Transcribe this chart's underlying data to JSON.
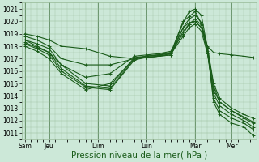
{
  "background_color": "#cce8d8",
  "grid_color": "#99bb99",
  "line_color": "#1a5c1a",
  "marker": "+",
  "markersize": 3,
  "linewidth": 0.8,
  "ylim": [
    1010.5,
    1021.5
  ],
  "yticks": [
    1011,
    1012,
    1013,
    1014,
    1015,
    1016,
    1017,
    1018,
    1019,
    1020,
    1021
  ],
  "xlabel": "Pression niveau de la mer( hPa )",
  "xlabel_fontsize": 7.5,
  "xtick_labels": [
    "Sam",
    "Jeu",
    "Dim",
    "Lun",
    "Mar",
    "Mer"
  ],
  "xtick_positions": [
    0,
    16,
    48,
    80,
    112,
    136
  ],
  "xlim": [
    -2,
    152
  ],
  "series": [
    {
      "x": [
        0,
        8,
        16,
        24,
        40,
        56,
        72,
        80,
        88,
        96,
        104,
        108,
        112,
        116,
        120,
        124,
        128,
        136,
        144,
        150
      ],
      "y": [
        1018.5,
        1018.2,
        1017.8,
        1016.5,
        1015.0,
        1014.8,
        1017.1,
        1017.2,
        1017.3,
        1017.4,
        1019.9,
        1020.8,
        1021.0,
        1020.5,
        1017.8,
        1013.5,
        1012.5,
        1011.8,
        1011.5,
        1010.8
      ]
    },
    {
      "x": [
        0,
        8,
        16,
        24,
        40,
        56,
        72,
        80,
        88,
        96,
        104,
        108,
        112,
        116,
        120,
        124,
        128,
        136,
        144,
        150
      ],
      "y": [
        1018.3,
        1017.9,
        1017.5,
        1016.2,
        1014.8,
        1014.6,
        1017.0,
        1017.1,
        1017.2,
        1017.3,
        1019.5,
        1020.2,
        1020.5,
        1019.9,
        1017.5,
        1013.8,
        1012.8,
        1012.2,
        1011.8,
        1011.3
      ]
    },
    {
      "x": [
        0,
        8,
        16,
        24,
        40,
        56,
        72,
        80,
        88,
        96,
        104,
        108,
        112,
        116,
        120,
        124,
        128,
        136,
        144,
        150
      ],
      "y": [
        1018.2,
        1017.8,
        1017.3,
        1016.0,
        1014.7,
        1014.5,
        1016.9,
        1017.1,
        1017.2,
        1017.3,
        1019.2,
        1019.8,
        1020.0,
        1019.5,
        1017.6,
        1014.2,
        1013.2,
        1012.5,
        1012.0,
        1011.5
      ]
    },
    {
      "x": [
        0,
        8,
        16,
        24,
        40,
        56,
        72,
        80,
        88,
        96,
        104,
        108,
        112,
        116,
        120,
        124,
        128,
        136,
        144,
        150
      ],
      "y": [
        1018.0,
        1017.6,
        1017.0,
        1015.8,
        1014.5,
        1015.0,
        1017.0,
        1017.1,
        1017.2,
        1017.4,
        1018.8,
        1019.5,
        1019.8,
        1019.2,
        1017.4,
        1014.5,
        1013.5,
        1012.8,
        1012.2,
        1011.8
      ]
    },
    {
      "x": [
        0,
        8,
        16,
        24,
        40,
        56,
        72,
        80,
        88,
        96,
        104,
        108,
        112,
        116,
        120,
        124,
        128,
        136,
        144,
        150
      ],
      "y": [
        1018.5,
        1018.0,
        1017.5,
        1016.5,
        1015.5,
        1015.8,
        1017.2,
        1017.3,
        1017.4,
        1017.6,
        1019.0,
        1019.8,
        1020.2,
        1019.7,
        1017.9,
        1014.8,
        1013.5,
        1012.8,
        1012.3,
        1011.9
      ]
    },
    {
      "x": [
        0,
        8,
        16,
        24,
        40,
        56,
        72,
        80,
        88,
        96,
        104,
        108,
        112,
        116,
        120,
        124,
        128,
        136,
        144,
        150
      ],
      "y": [
        1018.8,
        1018.5,
        1018.0,
        1017.0,
        1016.5,
        1016.5,
        1017.0,
        1017.2,
        1017.3,
        1017.5,
        1019.5,
        1019.9,
        1020.0,
        1019.5,
        1017.9,
        1015.0,
        1013.8,
        1013.0,
        1012.5,
        1012.2
      ]
    },
    {
      "x": [
        0,
        8,
        16,
        24,
        40,
        56,
        72,
        80,
        88,
        96,
        104,
        108,
        112,
        116,
        120,
        124,
        128,
        136,
        144,
        150
      ],
      "y": [
        1019.0,
        1018.8,
        1018.5,
        1018.0,
        1017.8,
        1017.2,
        1017.0,
        1017.2,
        1017.3,
        1017.5,
        1020.0,
        1020.4,
        1020.8,
        1019.8,
        1018.0,
        1017.5,
        1017.4,
        1017.3,
        1017.2,
        1017.1
      ]
    }
  ]
}
